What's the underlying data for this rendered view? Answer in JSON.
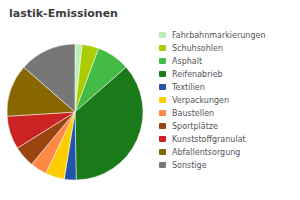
{
  "chart_data": {
    "type": "pie",
    "title": "lastik-Emissionen",
    "categories": [
      "Fahrbahnmarkierungen",
      "Schuhsohlen",
      "Asphalt",
      "Reifenabrieb",
      "Textilien",
      "Verpackungen",
      "Baustellen",
      "Sportplätze",
      "Kunststoffgranulat",
      "Abfallentsorgung",
      "Sonstige"
    ],
    "values": [
      1.5,
      3.5,
      7.0,
      32.0,
      2.5,
      4.0,
      3.5,
      4.5,
      7.0,
      11.0,
      12.0
    ],
    "colors": [
      "#b8f0b8",
      "#aacc00",
      "#44bb44",
      "#1a7a1a",
      "#2255aa",
      "#ffcc00",
      "#ff8844",
      "#994411",
      "#cc2222",
      "#886600",
      "#777777"
    ],
    "legend": "right"
  }
}
